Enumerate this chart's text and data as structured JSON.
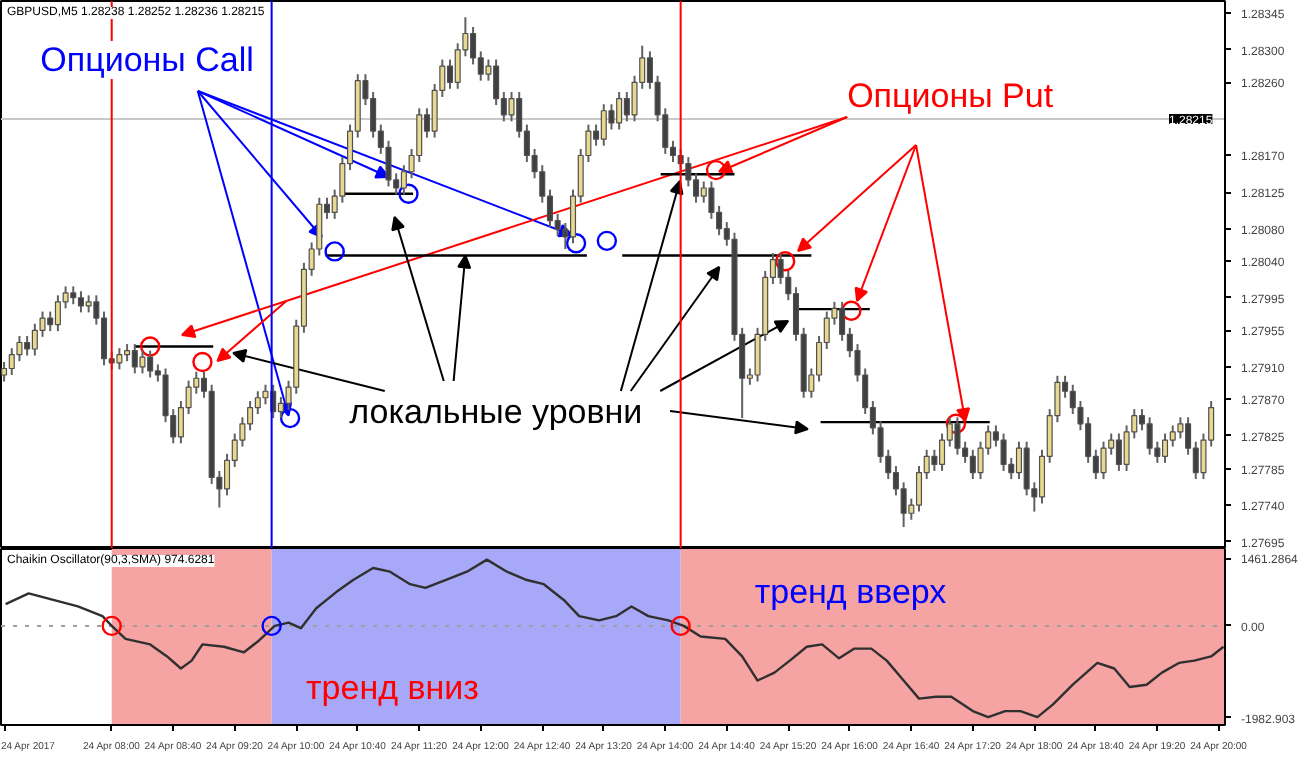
{
  "chart_data": [
    {
      "type": "candlestick",
      "title": "GBPUSD,M5  1.28238 1.28252 1.28236 1.28215",
      "x": [
        "2017-04-24T06:50",
        "2017-04-24T06:55",
        "2017-04-24T07:00",
        "2017-04-24T07:05",
        "2017-04-24T07:10",
        "2017-04-24T07:15",
        "2017-04-24T07:20",
        "2017-04-24T07:25",
        "2017-04-24T07:30",
        "2017-04-24T07:35",
        "2017-04-24T07:40",
        "2017-04-24T07:45",
        "2017-04-24T07:50",
        "2017-04-24T07:55",
        "2017-04-24T08:00",
        "2017-04-24T08:05",
        "2017-04-24T08:10",
        "2017-04-24T08:15",
        "2017-04-24T08:20",
        "2017-04-24T08:25",
        "2017-04-24T08:30",
        "2017-04-24T08:35",
        "2017-04-24T08:40",
        "2017-04-24T08:45",
        "2017-04-24T08:50",
        "2017-04-24T08:55",
        "2017-04-24T09:00",
        "2017-04-24T09:05",
        "2017-04-24T09:10",
        "2017-04-24T09:15",
        "2017-04-24T09:20",
        "2017-04-24T09:25",
        "2017-04-24T09:30",
        "2017-04-24T09:35",
        "2017-04-24T09:40",
        "2017-04-24T09:45",
        "2017-04-24T09:50",
        "2017-04-24T09:55",
        "2017-04-24T10:00",
        "2017-04-24T10:05",
        "2017-04-24T10:10",
        "2017-04-24T10:15",
        "2017-04-24T10:20",
        "2017-04-24T10:25",
        "2017-04-24T10:30",
        "2017-04-24T10:35",
        "2017-04-24T10:40",
        "2017-04-24T10:45",
        "2017-04-24T10:50",
        "2017-04-24T10:55",
        "2017-04-24T11:00",
        "2017-04-24T11:05",
        "2017-04-24T11:10",
        "2017-04-24T11:15",
        "2017-04-24T11:20",
        "2017-04-24T11:25",
        "2017-04-24T11:30",
        "2017-04-24T11:35",
        "2017-04-24T11:40",
        "2017-04-24T11:45",
        "2017-04-24T11:50",
        "2017-04-24T11:55",
        "2017-04-24T12:00",
        "2017-04-24T12:05",
        "2017-04-24T12:10",
        "2017-04-24T12:15",
        "2017-04-24T12:20",
        "2017-04-24T12:25",
        "2017-04-24T12:30",
        "2017-04-24T12:35",
        "2017-04-24T12:40",
        "2017-04-24T12:45",
        "2017-04-24T12:50",
        "2017-04-24T12:55",
        "2017-04-24T13:00",
        "2017-04-24T13:05",
        "2017-04-24T13:10",
        "2017-04-24T13:15",
        "2017-04-24T13:20",
        "2017-04-24T13:25",
        "2017-04-24T13:30",
        "2017-04-24T13:35",
        "2017-04-24T13:40",
        "2017-04-24T13:45",
        "2017-04-24T13:50",
        "2017-04-24T13:55",
        "2017-04-24T14:00",
        "2017-04-24T14:05",
        "2017-04-24T14:10",
        "2017-04-24T14:15",
        "2017-04-24T14:20",
        "2017-04-24T14:25",
        "2017-04-24T14:30",
        "2017-04-24T14:35",
        "2017-04-24T14:40",
        "2017-04-24T14:45",
        "2017-04-24T14:50",
        "2017-04-24T14:55",
        "2017-04-24T15:00",
        "2017-04-24T15:05",
        "2017-04-24T15:10",
        "2017-04-24T15:15",
        "2017-04-24T15:20",
        "2017-04-24T15:25",
        "2017-04-24T15:30",
        "2017-04-24T15:35",
        "2017-04-24T15:40",
        "2017-04-24T15:45",
        "2017-04-24T15:50",
        "2017-04-24T15:55",
        "2017-04-24T16:00",
        "2017-04-24T16:05",
        "2017-04-24T16:10",
        "2017-04-24T16:15",
        "2017-04-24T16:20",
        "2017-04-24T16:25",
        "2017-04-24T16:30",
        "2017-04-24T16:35",
        "2017-04-24T16:40",
        "2017-04-24T16:45",
        "2017-04-24T16:50",
        "2017-04-24T16:55",
        "2017-04-24T17:00",
        "2017-04-24T17:05",
        "2017-04-24T17:10",
        "2017-04-24T17:15",
        "2017-04-24T17:20",
        "2017-04-24T17:25",
        "2017-04-24T17:30",
        "2017-04-24T17:35",
        "2017-04-24T17:40",
        "2017-04-24T17:45",
        "2017-04-24T17:50",
        "2017-04-24T17:55",
        "2017-04-24T18:00",
        "2017-04-24T18:05",
        "2017-04-24T18:10",
        "2017-04-24T18:15",
        "2017-04-24T18:20",
        "2017-04-24T18:25",
        "2017-04-24T18:30",
        "2017-04-24T18:35",
        "2017-04-24T18:40",
        "2017-04-24T18:45",
        "2017-04-24T18:50",
        "2017-04-24T18:55",
        "2017-04-24T19:00",
        "2017-04-24T19:05",
        "2017-04-24T19:10",
        "2017-04-24T19:15",
        "2017-04-24T19:20",
        "2017-04-24T19:25",
        "2017-04-24T19:30",
        "2017-04-24T19:35",
        "2017-04-24T19:40",
        "2017-04-24T19:45",
        "2017-04-24T19:50",
        "2017-04-24T19:55"
      ],
      "ohlc": [
        [
          1.279,
          1.27916,
          1.27892,
          1.27908
        ],
        [
          1.27908,
          1.27933,
          1.279,
          1.27925
        ],
        [
          1.27925,
          1.27948,
          1.27917,
          1.2794
        ],
        [
          1.2794,
          1.27948,
          1.27924,
          1.27932
        ],
        [
          1.27932,
          1.27963,
          1.27924,
          1.27955
        ],
        [
          1.27955,
          1.27978,
          1.27947,
          1.2797
        ],
        [
          1.2797,
          1.27978,
          1.27954,
          1.27962
        ],
        [
          1.27962,
          1.27998,
          1.27954,
          1.2799
        ],
        [
          1.2799,
          1.28009,
          1.27982,
          1.28001
        ],
        [
          1.28001,
          1.28009,
          1.27987,
          1.27995
        ],
        [
          1.27995,
          1.28003,
          1.27977,
          1.27985
        ],
        [
          1.27985,
          1.27998,
          1.27977,
          1.2799
        ],
        [
          1.2799,
          1.27998,
          1.27962,
          1.2797
        ],
        [
          1.2797,
          1.27978,
          1.27912,
          1.2792
        ],
        [
          1.2792,
          1.27928,
          1.27907,
          1.27915
        ],
        [
          1.27915,
          1.27933,
          1.27907,
          1.27925
        ],
        [
          1.27925,
          1.27938,
          1.27917,
          1.2793
        ],
        [
          1.2793,
          1.27938,
          1.27902,
          1.2791
        ],
        [
          1.2791,
          1.2793,
          1.27902,
          1.27922
        ],
        [
          1.27922,
          1.2793,
          1.27897,
          1.27905
        ],
        [
          1.27905,
          1.27913,
          1.27892,
          1.279
        ],
        [
          1.279,
          1.27908,
          1.27842,
          1.2785
        ],
        [
          1.2785,
          1.27858,
          1.27816,
          1.27824
        ],
        [
          1.27824,
          1.27868,
          1.27816,
          1.2786
        ],
        [
          1.2786,
          1.27893,
          1.27852,
          1.27885
        ],
        [
          1.27885,
          1.27904,
          1.27877,
          1.27896
        ],
        [
          1.27896,
          1.27904,
          1.27872,
          1.2788
        ],
        [
          1.2788,
          1.27888,
          1.27766,
          1.27774
        ],
        [
          1.27774,
          1.27782,
          1.27737,
          1.2776
        ],
        [
          1.2776,
          1.27803,
          1.27752,
          1.27795
        ],
        [
          1.27795,
          1.27828,
          1.27787,
          1.2782
        ],
        [
          1.2782,
          1.27848,
          1.27812,
          1.2784
        ],
        [
          1.2784,
          1.27868,
          1.27832,
          1.2786
        ],
        [
          1.2786,
          1.2788,
          1.27852,
          1.27872
        ],
        [
          1.27872,
          1.27888,
          1.27864,
          1.2788
        ],
        [
          1.2788,
          1.27888,
          1.27847,
          1.27855
        ],
        [
          1.27855,
          1.27873,
          1.27847,
          1.27865
        ],
        [
          1.27865,
          1.27893,
          1.27857,
          1.27885
        ],
        [
          1.27885,
          1.27968,
          1.27877,
          1.2796
        ],
        [
          1.2796,
          1.28038,
          1.27952,
          1.2803
        ],
        [
          1.2803,
          1.28063,
          1.28022,
          1.28055
        ],
        [
          1.28055,
          1.28118,
          1.28047,
          1.2811
        ],
        [
          1.2811,
          1.28118,
          1.28092,
          1.281
        ],
        [
          1.281,
          1.28128,
          1.28092,
          1.2812
        ],
        [
          1.2812,
          1.28168,
          1.28112,
          1.2816
        ],
        [
          1.2816,
          1.28208,
          1.28152,
          1.282
        ],
        [
          1.282,
          1.2827,
          1.28192,
          1.28262
        ],
        [
          1.28262,
          1.2827,
          1.28232,
          1.2824
        ],
        [
          1.2824,
          1.28248,
          1.28192,
          1.282
        ],
        [
          1.282,
          1.28208,
          1.28172,
          1.2818
        ],
        [
          1.2818,
          1.28188,
          1.28132,
          1.2814
        ],
        [
          1.2814,
          1.28148,
          1.28122,
          1.2813
        ],
        [
          1.2813,
          1.28158,
          1.28122,
          1.2815
        ],
        [
          1.2815,
          1.28178,
          1.28142,
          1.2817
        ],
        [
          1.2817,
          1.28228,
          1.28162,
          1.2822
        ],
        [
          1.2822,
          1.28228,
          1.28192,
          1.282
        ],
        [
          1.282,
          1.28258,
          1.28192,
          1.2825
        ],
        [
          1.2825,
          1.28288,
          1.28242,
          1.2828
        ],
        [
          1.2828,
          1.28288,
          1.28252,
          1.2826
        ],
        [
          1.2826,
          1.28308,
          1.28252,
          1.283
        ],
        [
          1.283,
          1.2834,
          1.28292,
          1.2832
        ],
        [
          1.2832,
          1.28328,
          1.28282,
          1.2829
        ],
        [
          1.2829,
          1.28298,
          1.28262,
          1.2827
        ],
        [
          1.2827,
          1.28288,
          1.28262,
          1.2828
        ],
        [
          1.2828,
          1.28288,
          1.28232,
          1.2824
        ],
        [
          1.2824,
          1.28248,
          1.28212,
          1.2822
        ],
        [
          1.2822,
          1.28248,
          1.28212,
          1.2824
        ],
        [
          1.2824,
          1.28248,
          1.28192,
          1.282
        ],
        [
          1.282,
          1.28208,
          1.28162,
          1.2817
        ],
        [
          1.2817,
          1.28178,
          1.28142,
          1.2815
        ],
        [
          1.2815,
          1.28158,
          1.28112,
          1.2812
        ],
        [
          1.2812,
          1.28128,
          1.28082,
          1.2809
        ],
        [
          1.2809,
          1.28098,
          1.28071,
          1.28079
        ],
        [
          1.28079,
          1.28087,
          1.28055,
          1.2807
        ],
        [
          1.2807,
          1.28128,
          1.28062,
          1.2812
        ],
        [
          1.2812,
          1.28178,
          1.28112,
          1.2817
        ],
        [
          1.2817,
          1.28208,
          1.28162,
          1.282
        ],
        [
          1.282,
          1.28208,
          1.28182,
          1.2819
        ],
        [
          1.2819,
          1.28233,
          1.28182,
          1.28225
        ],
        [
          1.28225,
          1.28233,
          1.28202,
          1.2821
        ],
        [
          1.2821,
          1.28248,
          1.28202,
          1.2824
        ],
        [
          1.2824,
          1.28248,
          1.28212,
          1.2822
        ],
        [
          1.2822,
          1.28268,
          1.28212,
          1.2826
        ],
        [
          1.2826,
          1.28305,
          1.28252,
          1.2829
        ],
        [
          1.2829,
          1.28298,
          1.28252,
          1.2826
        ],
        [
          1.2826,
          1.28268,
          1.28212,
          1.2822
        ],
        [
          1.2822,
          1.28228,
          1.28172,
          1.2818
        ],
        [
          1.2818,
          1.28188,
          1.28162,
          1.2817
        ],
        [
          1.2817,
          1.28178,
          1.28152,
          1.2816
        ],
        [
          1.2816,
          1.28168,
          1.28132,
          1.2814
        ],
        [
          1.2814,
          1.28148,
          1.28112,
          1.2812
        ],
        [
          1.2812,
          1.28138,
          1.28112,
          1.2813
        ],
        [
          1.2813,
          1.28138,
          1.28092,
          1.281
        ],
        [
          1.281,
          1.28108,
          1.28072,
          1.2808
        ],
        [
          1.2808,
          1.28088,
          1.28059,
          1.28067
        ],
        [
          1.28067,
          1.28075,
          1.27942,
          1.2795
        ],
        [
          1.2795,
          1.27958,
          1.27847,
          1.27896
        ],
        [
          1.27896,
          1.27908,
          1.27888,
          1.279
        ],
        [
          1.279,
          1.27958,
          1.27892,
          1.2795
        ],
        [
          1.2795,
          1.28028,
          1.27942,
          1.2802
        ],
        [
          1.2802,
          1.2805,
          1.28012,
          1.28042
        ],
        [
          1.28042,
          1.2805,
          1.28012,
          1.2802
        ],
        [
          1.2802,
          1.28028,
          1.27992,
          1.28
        ],
        [
          1.28,
          1.28008,
          1.27942,
          1.2795
        ],
        [
          1.2795,
          1.27958,
          1.27872,
          1.2788
        ],
        [
          1.2788,
          1.27908,
          1.27872,
          1.279
        ],
        [
          1.279,
          1.27948,
          1.27892,
          1.2794
        ],
        [
          1.2794,
          1.27978,
          1.27932,
          1.2797
        ],
        [
          1.2797,
          1.2799,
          1.27962,
          1.27982
        ],
        [
          1.27982,
          1.2799,
          1.27942,
          1.2795
        ],
        [
          1.2795,
          1.27958,
          1.27922,
          1.2793
        ],
        [
          1.2793,
          1.27938,
          1.27892,
          1.279
        ],
        [
          1.279,
          1.27908,
          1.27852,
          1.2786
        ],
        [
          1.2786,
          1.27868,
          1.27827,
          1.27835
        ],
        [
          1.27835,
          1.27843,
          1.27792,
          1.278
        ],
        [
          1.278,
          1.27808,
          1.27772,
          1.2778
        ],
        [
          1.2778,
          1.27788,
          1.27752,
          1.2776
        ],
        [
          1.2776,
          1.27768,
          1.27713,
          1.2773
        ],
        [
          1.2773,
          1.27748,
          1.27722,
          1.2774
        ],
        [
          1.2774,
          1.27788,
          1.27732,
          1.2778
        ],
        [
          1.2778,
          1.27808,
          1.27772,
          1.278
        ],
        [
          1.278,
          1.27808,
          1.27782,
          1.2779
        ],
        [
          1.2779,
          1.27828,
          1.27782,
          1.2782
        ],
        [
          1.2782,
          1.27848,
          1.27812,
          1.2784
        ],
        [
          1.2784,
          1.27848,
          1.27802,
          1.2781
        ],
        [
          1.2781,
          1.27818,
          1.27792,
          1.278
        ],
        [
          1.278,
          1.27808,
          1.27772,
          1.2778
        ],
        [
          1.2778,
          1.27818,
          1.27772,
          1.2781
        ],
        [
          1.2781,
          1.27838,
          1.27802,
          1.2783
        ],
        [
          1.2783,
          1.27838,
          1.27812,
          1.2782
        ],
        [
          1.2782,
          1.27828,
          1.27782,
          1.2779
        ],
        [
          1.2779,
          1.27798,
          1.27772,
          1.2778
        ],
        [
          1.2778,
          1.27818,
          1.27772,
          1.2781
        ],
        [
          1.2781,
          1.27818,
          1.27752,
          1.2776
        ],
        [
          1.2776,
          1.27768,
          1.27732,
          1.2775
        ],
        [
          1.2775,
          1.27808,
          1.27742,
          1.278
        ],
        [
          1.278,
          1.27858,
          1.27792,
          1.2785
        ],
        [
          1.2785,
          1.27899,
          1.27842,
          1.27891
        ],
        [
          1.27891,
          1.27899,
          1.27872,
          1.2788
        ],
        [
          1.2788,
          1.27888,
          1.27852,
          1.2786
        ],
        [
          1.2786,
          1.27868,
          1.27832,
          1.2784
        ],
        [
          1.2784,
          1.27848,
          1.27792,
          1.278
        ],
        [
          1.278,
          1.27808,
          1.27772,
          1.2778
        ],
        [
          1.2778,
          1.27818,
          1.27772,
          1.2781
        ],
        [
          1.2781,
          1.27828,
          1.27802,
          1.2782
        ],
        [
          1.2782,
          1.27828,
          1.27782,
          1.2779
        ],
        [
          1.2779,
          1.27838,
          1.27782,
          1.2783
        ],
        [
          1.2783,
          1.27858,
          1.27822,
          1.2785
        ],
        [
          1.2785,
          1.27858,
          1.27832,
          1.2784
        ],
        [
          1.2784,
          1.27848,
          1.27802,
          1.2781
        ],
        [
          1.2781,
          1.27818,
          1.27792,
          1.278
        ],
        [
          1.278,
          1.27828,
          1.27792,
          1.2782
        ],
        [
          1.2782,
          1.27838,
          1.27812,
          1.2783
        ],
        [
          1.2783,
          1.27848,
          1.27822,
          1.2784
        ],
        [
          1.2784,
          1.27848,
          1.27802,
          1.2781
        ],
        [
          1.2781,
          1.27818,
          1.27772,
          1.2778
        ],
        [
          1.2778,
          1.27828,
          1.27772,
          1.2782
        ],
        [
          1.2782,
          1.27868,
          1.27812,
          1.2786
        ]
      ],
      "colors": [
        "#e8d890",
        "#e8d890",
        "#e8d890",
        "#404040",
        "#e8d890",
        "#e8d890",
        "#404040",
        "#e8d890",
        "#e8d890",
        "#404040",
        "#404040",
        "#e8d890",
        "#404040",
        "#404040",
        "#404040",
        "#e8d890",
        "#e8d890",
        "#404040",
        "#e8d890",
        "#404040",
        "#404040",
        "#404040",
        "#404040",
        "#e8d890",
        "#e8d890",
        "#e8d890",
        "#404040",
        "#404040",
        "#404040",
        "#e8d890",
        "#e8d890",
        "#e8d890",
        "#e8d890",
        "#e8d890",
        "#e8d890",
        "#404040",
        "#e8d890",
        "#e8d890",
        "#e8d890",
        "#e8d890",
        "#e8d890",
        "#e8d890",
        "#404040",
        "#e8d890",
        "#e8d890",
        "#e8d890",
        "#e8d890",
        "#404040",
        "#404040",
        "#404040",
        "#404040",
        "#404040",
        "#e8d890",
        "#e8d890",
        "#e8d890",
        "#404040",
        "#e8d890",
        "#e8d890",
        "#404040",
        "#e8d890",
        "#e8d890",
        "#404040",
        "#404040",
        "#e8d890",
        "#404040",
        "#404040",
        "#e8d890",
        "#404040",
        "#404040",
        "#404040",
        "#404040",
        "#404040",
        "#404040",
        "#404040",
        "#e8d890",
        "#e8d890",
        "#e8d890",
        "#404040",
        "#e8d890",
        "#404040",
        "#e8d890",
        "#404040",
        "#e8d890",
        "#e8d890",
        "#404040",
        "#404040",
        "#404040",
        "#404040",
        "#404040",
        "#404040",
        "#404040",
        "#e8d890",
        "#404040",
        "#404040",
        "#404040",
        "#404040",
        "#404040",
        "#e8d890",
        "#e8d890",
        "#e8d890",
        "#e8d890",
        "#404040",
        "#404040",
        "#404040",
        "#404040",
        "#e8d890",
        "#e8d890",
        "#e8d890",
        "#e8d890",
        "#404040",
        "#404040",
        "#404040",
        "#404040",
        "#404040",
        "#404040",
        "#404040",
        "#404040",
        "#404040",
        "#e8d890",
        "#e8d890",
        "#e8d890",
        "#404040",
        "#e8d890",
        "#e8d890",
        "#404040",
        "#404040",
        "#404040",
        "#e8d890",
        "#e8d890",
        "#404040",
        "#404040",
        "#404040",
        "#e8d890",
        "#404040",
        "#404040",
        "#e8d890",
        "#e8d890",
        "#e8d890",
        "#404040",
        "#404040",
        "#404040",
        "#404040",
        "#404040",
        "#e8d890",
        "#e8d890",
        "#404040",
        "#e8d890",
        "#e8d890",
        "#404040",
        "#404040",
        "#404040",
        "#e8d890",
        "#e8d890",
        "#e8d890",
        "#404040",
        "#404040",
        "#e8d890",
        "#e8d890"
      ],
      "series": [
        {
          "type": "line",
          "color": "#000000",
          "x": [
            "2017-04-24T08:15",
            "2017-04-24T09:06"
          ],
          "values": [
            1.27935,
            1.27935
          ]
        },
        {
          "type": "line",
          "color": "#000000",
          "x": [
            "2017-04-24T10:29",
            "2017-04-24T11:16"
          ],
          "values": [
            1.28123,
            1.28123
          ]
        },
        {
          "type": "line",
          "color": "#000000",
          "x": [
            "2017-04-24T10:19",
            "2017-04-24T13:09"
          ],
          "values": [
            1.28047,
            1.28047
          ]
        },
        {
          "type": "line",
          "color": "#000000",
          "x": [
            "2017-04-24T13:32",
            "2017-04-24T15:35"
          ],
          "values": [
            1.28047,
            1.28047
          ]
        },
        {
          "type": "line",
          "color": "#000000",
          "x": [
            "2017-04-24T13:57",
            "2017-04-24T14:45"
          ],
          "values": [
            1.28147,
            1.28147
          ]
        },
        {
          "type": "line",
          "color": "#000000",
          "x": [
            "2017-04-24T15:26",
            "2017-04-24T16:13"
          ],
          "values": [
            1.27981,
            1.27981
          ]
        },
        {
          "type": "line",
          "color": "#000000",
          "x": [
            "2017-04-24T15:41",
            "2017-04-24T17:31"
          ],
          "values": [
            1.27842,
            1.27842
          ]
        },
        {
          "type": "scatter",
          "marker": "circle",
          "color": "#0000ff",
          "x": [
            "2017-04-24T09:56",
            "2017-04-24T10:25",
            "2017-04-24T11:13",
            "2017-04-24T13:02",
            "2017-04-24T13:22"
          ],
          "values": [
            1.27847,
            1.28052,
            1.28123,
            1.28062,
            1.28065
          ]
        },
        {
          "type": "scatter",
          "marker": "circle",
          "color": "#ff0000",
          "x": [
            "2017-04-24T08:25",
            "2017-04-24T08:59",
            "2017-04-24T14:33",
            "2017-04-24T15:18",
            "2017-04-24T16:01",
            "2017-04-24T17:09"
          ],
          "values": [
            1.27935,
            1.27916,
            1.28152,
            1.2804,
            1.27979,
            1.2784
          ]
        }
      ],
      "xlim": [
        "2017-04-24T06:48",
        "2017-04-24T20:04"
      ],
      "ylim": [
        1.27686,
        1.2836
      ],
      "yticks": [
        {
          "value": 1.28345,
          "label": "1.28345"
        },
        {
          "value": 1.283,
          "label": "1.28300"
        },
        {
          "value": 1.2826,
          "label": "1.28260"
        },
        {
          "value": 1.2817,
          "label": "1.28170"
        },
        {
          "value": 1.28125,
          "label": "1.28125"
        },
        {
          "value": 1.2808,
          "label": "1.28080"
        },
        {
          "value": 1.2804,
          "label": "1.28040"
        },
        {
          "value": 1.27995,
          "label": "1.27995"
        },
        {
          "value": 1.27955,
          "label": "1.27955"
        },
        {
          "value": 1.2791,
          "label": "1.27910"
        },
        {
          "value": 1.2787,
          "label": "1.27870"
        },
        {
          "value": 1.27825,
          "label": "1.27825"
        },
        {
          "value": 1.27785,
          "label": "1.27785"
        },
        {
          "value": 1.2774,
          "label": "1.27740"
        },
        {
          "value": 1.27695,
          "label": "1.27695"
        }
      ],
      "tick_labels": "y",
      "ref_lines": [
        {
          "axis": "y",
          "value": 1.28215,
          "label": "1.28215",
          "color": "#c8c8c8"
        },
        {
          "axis": "x",
          "value": "2017-04-24T08:00",
          "color": "#ff0000"
        },
        {
          "axis": "x",
          "value": "2017-04-24T09:44",
          "color": "#0000ff"
        },
        {
          "axis": "x",
          "value": "2017-04-24T14:10",
          "color": "#ff0000"
        }
      ],
      "annotations": [
        {
          "text": "Опционы Call",
          "x": "2017-04-24T09:55",
          "y": 1.2785
        },
        {
          "text": "Опционы Put",
          "x": "2017-04-24T14:35",
          "y": 1.2815
        },
        {
          "text": "локальные уровни",
          "x": "2017-04-24T11:50",
          "y": 1.28047
        }
      ]
    },
    {
      "type": "line",
      "title": "Chaikin Oscillator(90,3,SMA) 974.6281",
      "series": [
        {
          "color": "#303030",
          "x": [
            "2017-04-24T06:51",
            "2017-04-24T07:06",
            "2017-04-24T07:22",
            "2017-04-24T07:38",
            "2017-04-24T07:54",
            "2017-04-24T08:00",
            "2017-04-24T08:09",
            "2017-04-24T08:25",
            "2017-04-24T08:36",
            "2017-04-24T08:45",
            "2017-04-24T08:52",
            "2017-04-24T08:59",
            "2017-04-24T09:13",
            "2017-04-24T09:26",
            "2017-04-24T09:36",
            "2017-04-24T09:46",
            "2017-04-24T09:55",
            "2017-04-24T10:03",
            "2017-04-24T10:13",
            "2017-04-24T10:26",
            "2017-04-24T10:37",
            "2017-04-24T10:50",
            "2017-04-24T11:01",
            "2017-04-24T11:14",
            "2017-04-24T11:24",
            "2017-04-24T11:37",
            "2017-04-24T11:51",
            "2017-04-24T12:04",
            "2017-04-24T12:17",
            "2017-04-24T12:30",
            "2017-04-24T12:41",
            "2017-04-24T12:54",
            "2017-04-24T13:04",
            "2017-04-24T13:17",
            "2017-04-24T13:28",
            "2017-04-24T13:38",
            "2017-04-24T13:49",
            "2017-04-24T14:02",
            "2017-04-24T14:12",
            "2017-04-24T14:23",
            "2017-04-24T14:39",
            "2017-04-24T14:50",
            "2017-04-24T15:00",
            "2017-04-24T15:11",
            "2017-04-24T15:21",
            "2017-04-24T15:32",
            "2017-04-24T15:42",
            "2017-04-24T15:53",
            "2017-04-24T16:03",
            "2017-04-24T16:14",
            "2017-04-24T16:24",
            "2017-04-24T16:35",
            "2017-04-24T16:45",
            "2017-04-24T16:56",
            "2017-04-24T17:06",
            "2017-04-24T17:20",
            "2017-04-24T17:30",
            "2017-04-24T17:41",
            "2017-04-24T17:51",
            "2017-04-24T18:02",
            "2017-04-24T18:12",
            "2017-04-24T18:25",
            "2017-04-24T18:41",
            "2017-04-24T18:52",
            "2017-04-24T19:02",
            "2017-04-24T19:13",
            "2017-04-24T19:23",
            "2017-04-24T19:34",
            "2017-04-24T19:44",
            "2017-04-24T19:55",
            "2017-04-24T20:03"
          ],
          "values": [
            470,
            700,
            560,
            420,
            210,
            0,
            -280,
            -400,
            -660,
            -920,
            -750,
            -400,
            -450,
            -570,
            -310,
            0,
            70,
            -50,
            380,
            730,
            990,
            1250,
            1170,
            900,
            820,
            990,
            1170,
            1430,
            1170,
            990,
            900,
            560,
            210,
            120,
            210,
            420,
            210,
            120,
            0,
            -230,
            -280,
            -660,
            -1180,
            -1010,
            -750,
            -450,
            -400,
            -700,
            -490,
            -490,
            -750,
            -1180,
            -1570,
            -1530,
            -1530,
            -1840,
            -1970,
            -1840,
            -1840,
            -1970,
            -1700,
            -1270,
            -800,
            -920,
            -1320,
            -1270,
            -1010,
            -800,
            -750,
            -660,
            -450
          ]
        },
        {
          "type": "scatter",
          "marker": "circle",
          "color": "#ff0000",
          "x": [
            "2017-04-24T08:00",
            "2017-04-24T14:10"
          ],
          "values": [
            0,
            0
          ]
        },
        {
          "type": "scatter",
          "marker": "circle",
          "color": "#0000ff",
          "x": [
            "2017-04-24T09:44"
          ],
          "values": [
            0
          ]
        }
      ],
      "xlim": [
        "2017-04-24T06:48",
        "2017-04-24T20:04"
      ],
      "ylim": [
        -2140,
        1660
      ],
      "yticks": [
        {
          "value": 1461.2864,
          "label": "1461.2864"
        },
        {
          "value": 0,
          "label": "0.00"
        },
        {
          "value": -1982.903,
          "label": "-1982.903"
        }
      ],
      "xticks": [
        {
          "value": "2017-04-24T06:50",
          "label": "24 Apr 2017"
        },
        {
          "value": "2017-04-24T08:00",
          "label": "24 Apr 08:00"
        },
        {
          "value": "2017-04-24T08:40",
          "label": "24 Apr 08:40"
        },
        {
          "value": "2017-04-24T09:20",
          "label": "24 Apr 09:20"
        },
        {
          "value": "2017-04-24T10:00",
          "label": "24 Apr 10:00"
        },
        {
          "value": "2017-04-24T10:40",
          "label": "24 Apr 10:40"
        },
        {
          "value": "2017-04-24T11:20",
          "label": "24 Apr 11:20"
        },
        {
          "value": "2017-04-24T12:00",
          "label": "24 Apr 12:00"
        },
        {
          "value": "2017-04-24T12:40",
          "label": "24 Apr 12:40"
        },
        {
          "value": "2017-04-24T13:20",
          "label": "24 Apr 13:20"
        },
        {
          "value": "2017-04-24T14:00",
          "label": "24 Apr 14:00"
        },
        {
          "value": "2017-04-24T14:40",
          "label": "24 Apr 14:40"
        },
        {
          "value": "2017-04-24T15:20",
          "label": "24 Apr 15:20"
        },
        {
          "value": "2017-04-24T16:00",
          "label": "24 Apr 16:00"
        },
        {
          "value": "2017-04-24T16:40",
          "label": "24 Apr 16:40"
        },
        {
          "value": "2017-04-24T17:20",
          "label": "24 Apr 17:20"
        },
        {
          "value": "2017-04-24T18:00",
          "label": "24 Apr 18:00"
        },
        {
          "value": "2017-04-24T18:40",
          "label": "24 Apr 18:40"
        },
        {
          "value": "2017-04-24T19:20",
          "label": "24 Apr 19:20"
        },
        {
          "value": "2017-04-24T20:00",
          "label": "24 Apr 20:00"
        }
      ],
      "bands": [
        {
          "axis": "x",
          "from": "2017-04-24T08:00",
          "to": "2017-04-24T09:44",
          "color": "#f5a3a3"
        },
        {
          "axis": "x",
          "from": "2017-04-24T09:44",
          "to": "2017-04-24T14:10",
          "color": "#a8a8f8"
        },
        {
          "axis": "x",
          "from": "2017-04-24T14:10",
          "to": "2017-04-24T20:04",
          "color": "#f5a3a3"
        }
      ],
      "ref_lines": [
        {
          "axis": "y",
          "value": 0,
          "color": "#a0a0a0",
          "line_style": "dotted"
        }
      ],
      "annotations": [
        "тренд вверх",
        "тренд вниз"
      ]
    }
  ]
}
